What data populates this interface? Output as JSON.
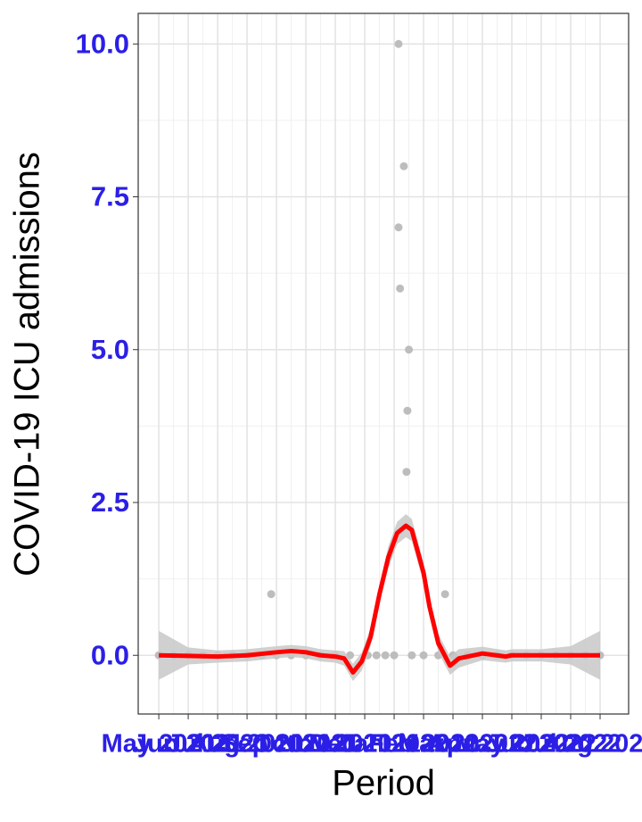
{
  "chart_data": {
    "type": "scatter-smooth",
    "x_label": "Period",
    "y_label": "COVID-19 ICU admissions",
    "categories": [
      "May 2021",
      "Jun 2021",
      "Jul 2021",
      "Aug 2021",
      "Sep 2021",
      "Oct 2021",
      "Nov 2021",
      "Dec 2021",
      "Jan 2022",
      "Feb 2022",
      "Mar 2022",
      "Apr 2022",
      "May 2022",
      "Jun 2022",
      "Jul 2022",
      "Aug 2022"
    ],
    "xlim": [
      -0.7,
      15.97
    ],
    "ylim": [
      -0.96,
      10.5
    ],
    "yticks": [
      {
        "value": 0,
        "label": "0.0"
      },
      2.5,
      {
        "value": 5,
        "label": "5.0"
      },
      7.5,
      {
        "value": 10,
        "label": "10.0"
      }
    ],
    "grid": true,
    "points": {
      "color": "#bdbdbd",
      "x": [
        0,
        0.5,
        1,
        1.5,
        2,
        2.5,
        3,
        3.5,
        4,
        4.5,
        5,
        5.5,
        6,
        6.5,
        7.1,
        7.4,
        7.7,
        8.0,
        8.6,
        9.0,
        9.5,
        10,
        10.5,
        11,
        11.5,
        12,
        12.5,
        13,
        13.5,
        14,
        14.5,
        15,
        3.82,
        9.73,
        8.15,
        8.33,
        8.15,
        8.2,
        8.5,
        8.45,
        8.42
      ],
      "y": [
        0,
        0,
        0,
        0,
        0,
        0,
        0,
        0,
        0,
        0,
        0,
        0,
        0,
        0,
        0,
        0,
        0,
        0,
        0,
        0,
        0,
        0,
        0,
        0,
        0,
        0,
        0,
        0,
        0,
        0,
        0,
        0,
        1,
        1,
        10,
        8,
        7,
        6,
        5,
        4,
        3
      ]
    },
    "smooth": {
      "color": "#ff0000",
      "band_color": "#c8c8c8",
      "x": [
        0,
        1,
        2,
        3,
        4,
        4.5,
        5,
        5.5,
        6,
        6.3,
        6.6,
        6.9,
        7.2,
        7.5,
        7.8,
        8.1,
        8.4,
        8.6,
        9.0,
        9.2,
        9.5,
        9.9,
        10.2,
        11,
        11.8,
        12,
        13,
        14,
        15
      ],
      "y": [
        0,
        -0.01,
        -0.02,
        0,
        0.05,
        0.07,
        0.05,
        0,
        -0.02,
        -0.05,
        -0.28,
        -0.1,
        0.3,
        1.0,
        1.6,
        2.0,
        2.12,
        2.05,
        1.35,
        0.8,
        0.2,
        -0.17,
        -0.05,
        0.03,
        -0.02,
        0,
        0,
        0,
        0
      ],
      "lower": [
        -0.4,
        -0.15,
        -0.12,
        -0.1,
        -0.05,
        -0.03,
        -0.05,
        -0.1,
        -0.12,
        -0.17,
        -0.42,
        -0.25,
        0.15,
        0.85,
        1.42,
        1.82,
        1.93,
        1.87,
        1.18,
        0.63,
        0.05,
        -0.32,
        -0.2,
        -0.08,
        -0.12,
        -0.1,
        -0.1,
        -0.15,
        -0.4
      ],
      "upper": [
        0.4,
        0.13,
        0.08,
        0.1,
        0.15,
        0.17,
        0.15,
        0.1,
        0.08,
        0.07,
        -0.14,
        0.05,
        0.45,
        1.15,
        1.78,
        2.18,
        2.31,
        2.23,
        1.52,
        0.97,
        0.35,
        -0.02,
        0.1,
        0.14,
        0.08,
        0.1,
        0.1,
        0.15,
        0.4
      ]
    }
  }
}
